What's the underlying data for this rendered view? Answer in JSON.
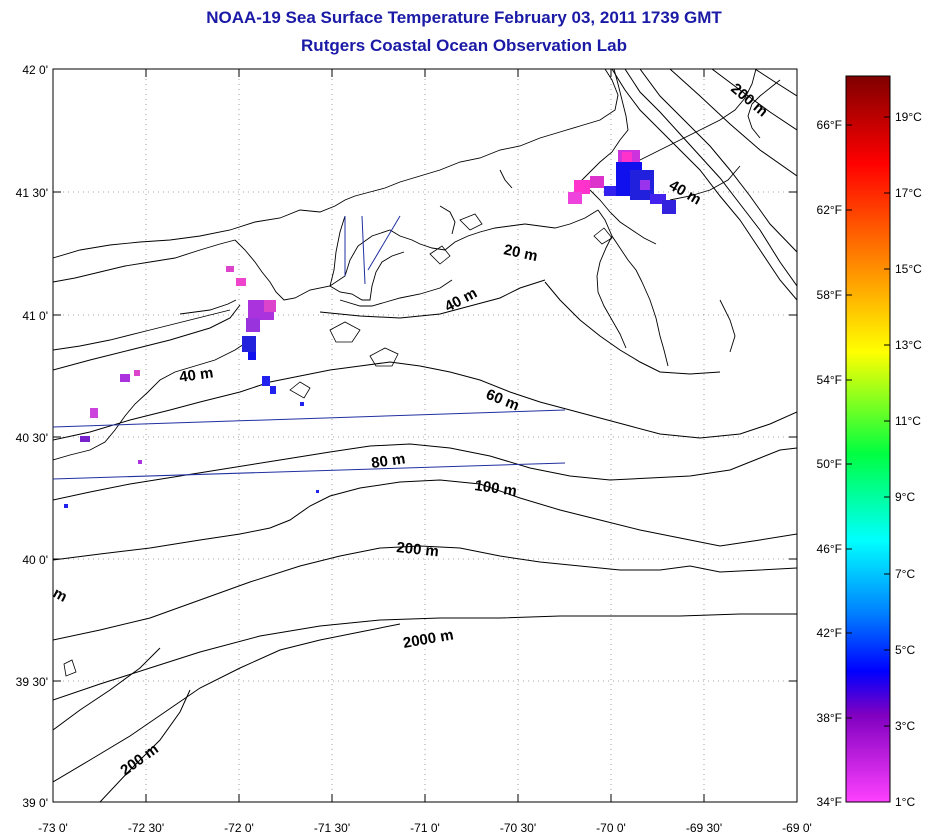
{
  "header": {
    "title": "NOAA-19 Sea Surface Temperature February 03, 2011 1739 GMT",
    "subtitle": "Rutgers Coastal Ocean Observation Lab"
  },
  "map": {
    "lat_labels": [
      "42 0'",
      "41 30'",
      "41 0'",
      "40 30'",
      "40 0'",
      "39 30'",
      "39 0'"
    ],
    "lon_labels": [
      "-73 0'",
      "-72 30'",
      "-72 0'",
      "-71 30'",
      "-71 0'",
      "-70 30'",
      "-70 0'",
      "-69 30'",
      "-69 0'"
    ],
    "depth_labels": [
      "200 m",
      "40 m",
      "20 m",
      "40 m",
      "40 m",
      "60 m",
      "80 m",
      "100 m",
      "200 m",
      "2000 m",
      "200 m",
      "m"
    ],
    "contour_color": "#000000",
    "grid_color": "#888888",
    "track_color": "#2030a0"
  },
  "colorbar": {
    "fahrenheit_labels": [
      "66°F",
      "62°F",
      "58°F",
      "54°F",
      "50°F",
      "46°F",
      "42°F",
      "38°F",
      "34°F"
    ],
    "celsius_labels": [
      "19°C",
      "17°C",
      "15°C",
      "13°C",
      "11°C",
      "9°C",
      "7°C",
      "5°C",
      "3°C",
      "1°C"
    ],
    "gradient_colors": [
      "#7f0000",
      "#ff0000",
      "#ff8000",
      "#ffff00",
      "#00ff40",
      "#00ffff",
      "#0080ff",
      "#0000ff",
      "#8000c0",
      "#ff40ff"
    ]
  }
}
